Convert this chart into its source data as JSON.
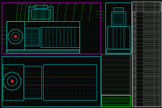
{
  "bg_color": "#080808",
  "cyan": "#00b8b8",
  "cyan2": "#00ffff",
  "magenta": "#cc00cc",
  "green": "#00cc00",
  "bright_green": "#00ff00",
  "white": "#bbbbbb",
  "red": "#cc2222",
  "yellow": "#aaaa00",
  "gray": "#444444",
  "figsize": [
    2.0,
    1.33
  ],
  "dpi": 100
}
